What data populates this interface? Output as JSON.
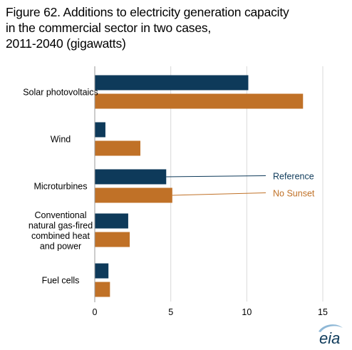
{
  "title_lines": [
    "Figure 62. Additions to electricity generation capacity",
    "in the commercial sector in two cases,",
    "2011-2040 (gigawatts)"
  ],
  "logo_text": "eia",
  "chart_data": {
    "type": "bar",
    "orientation": "horizontal",
    "title": "Figure 62. Additions to electricity generation capacity in the commercial sector in two cases, 2011-2040 (gigawatts)",
    "categories": [
      [
        "Solar photovoltaics"
      ],
      [
        "Wind"
      ],
      [
        "Microturbines"
      ],
      [
        "Conventional",
        "natural gas-fired",
        "combined heat",
        "and power"
      ],
      [
        "Fuel cells"
      ]
    ],
    "series": [
      {
        "name": "Reference",
        "color": "#0e3a5a",
        "values": [
          10.1,
          0.7,
          4.7,
          2.2,
          0.9
        ]
      },
      {
        "name": "No Sunset",
        "color": "#c07127",
        "values": [
          13.7,
          3.0,
          5.1,
          2.3,
          1.0
        ]
      }
    ],
    "xlim": [
      0,
      15
    ],
    "xticks": [
      0,
      5,
      10,
      15
    ],
    "grid": true,
    "legend": "inline-right"
  }
}
